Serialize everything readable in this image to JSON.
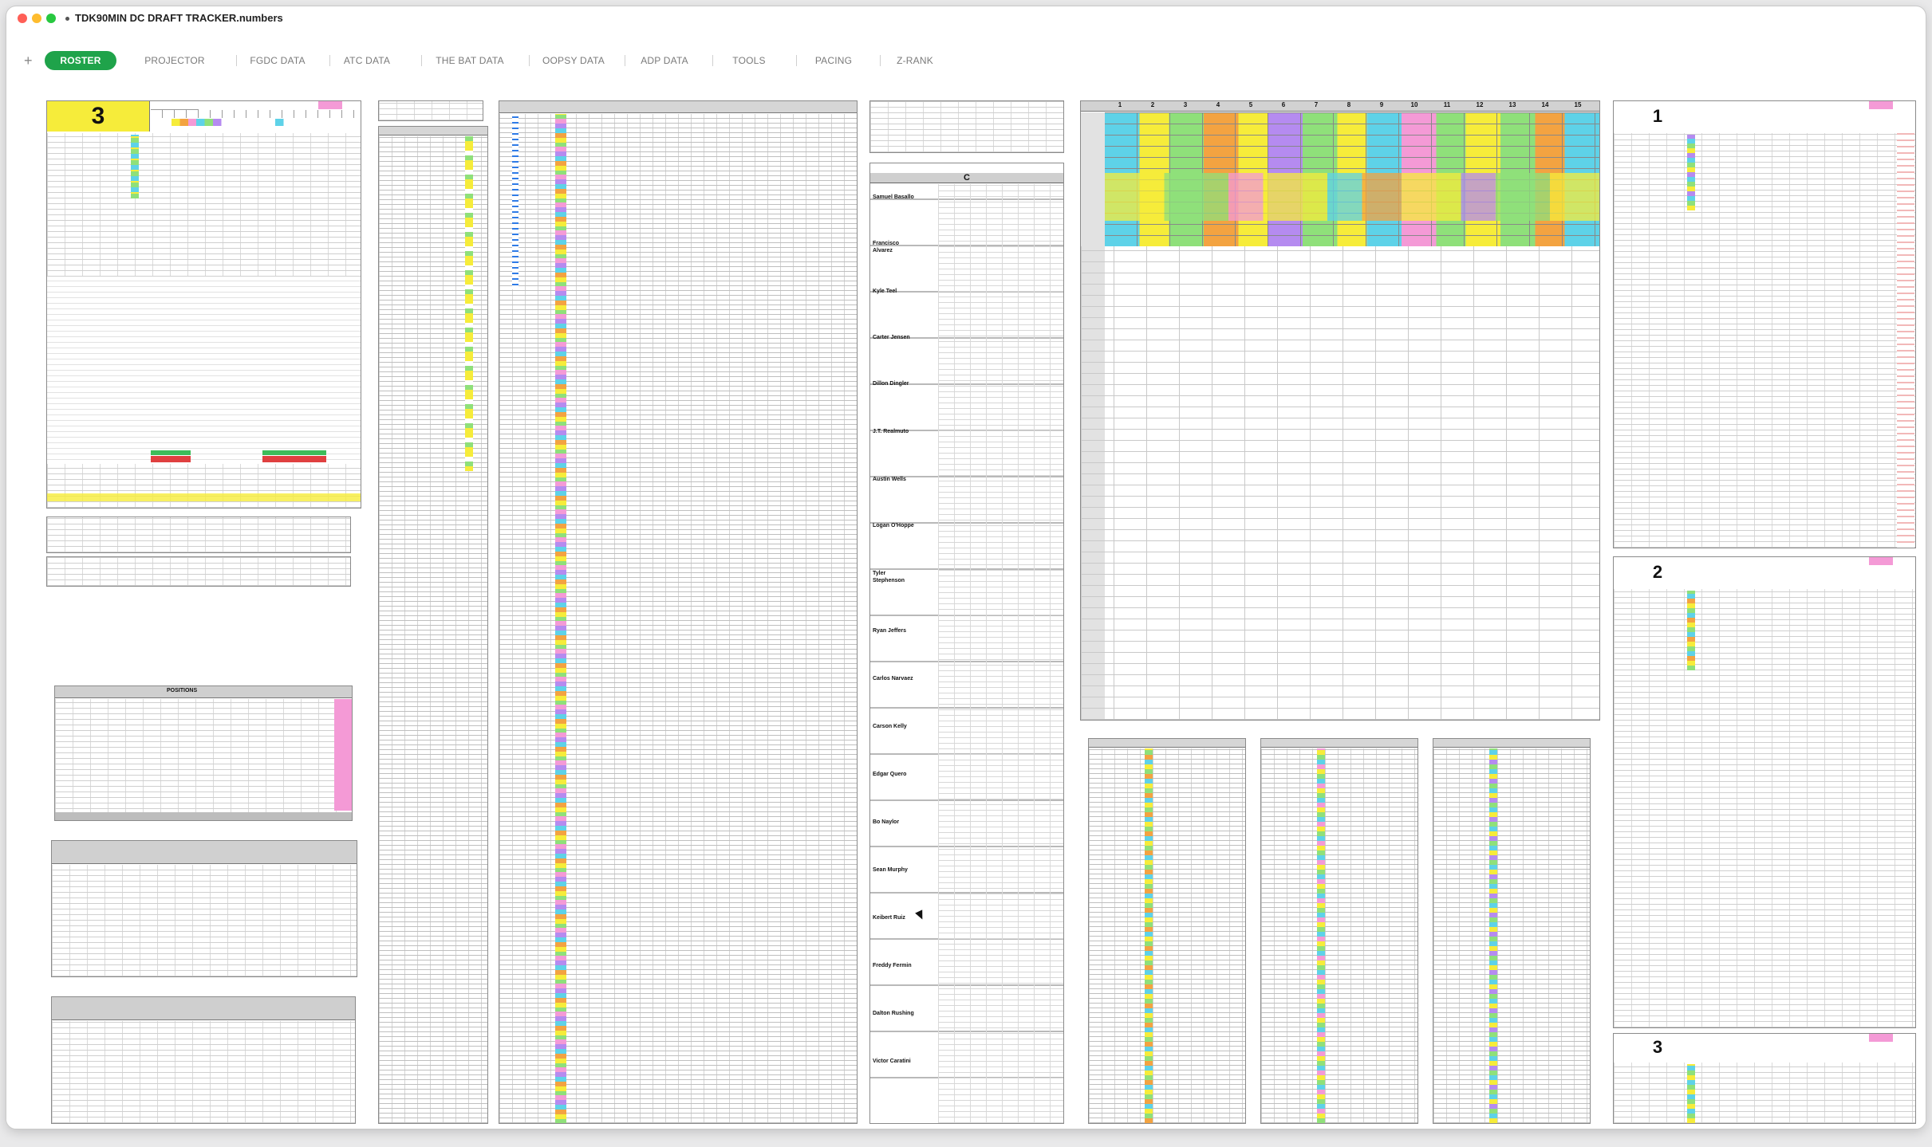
{
  "window": {
    "title": "TDK90MIN DC DRAFT TRACKER.numbers"
  },
  "tabs": [
    {
      "label": "ROSTER",
      "active": true
    },
    {
      "label": "PROJECTOR"
    },
    {
      "label": "FGDC DATA"
    },
    {
      "label": "ATC DATA"
    },
    {
      "label": "THE BAT DATA"
    },
    {
      "label": "OOPSY DATA"
    },
    {
      "label": "ADP DATA"
    },
    {
      "label": "TOOLS"
    },
    {
      "label": "PACING"
    },
    {
      "label": "Z-RANK"
    }
  ],
  "roster_team": {
    "number": "3"
  },
  "positions_section": {
    "label": "POSITIONS"
  },
  "projection_panel": {
    "header_letter": "C",
    "players": [
      "Samuel Basallo",
      "Francisco Alvarez",
      "Kyle Teel",
      "Carter Jensen",
      "Dillon Dingler",
      "J.T. Realmuto",
      "Austin Wells",
      "Logan O'Hoppe",
      "Tyler Stephenson",
      "Ryan Jeffers",
      "Carlos Narvaez",
      "Carson Kelly",
      "Edgar Quero",
      "Bo Naylor",
      "Sean Murphy",
      "Keibert Ruiz",
      "Freddy Fermin",
      "Dalton Rushing",
      "Victor Caratini"
    ]
  },
  "draft_board": {
    "rounds": [
      "1",
      "2",
      "3",
      "4",
      "5",
      "6",
      "7",
      "8",
      "9",
      "10",
      "11",
      "12",
      "13",
      "14",
      "15"
    ]
  },
  "team_panels": [
    {
      "number": "1"
    },
    {
      "number": "2"
    },
    {
      "number": "3"
    }
  ],
  "colors": {
    "accent": "#1fa34a",
    "yellow": "#f6ec3a",
    "pink": "#f49ad6",
    "cyan": "#5ed2e8",
    "orange": "#f3a341",
    "green": "#8fe07a",
    "purple": "#b58bf0"
  }
}
